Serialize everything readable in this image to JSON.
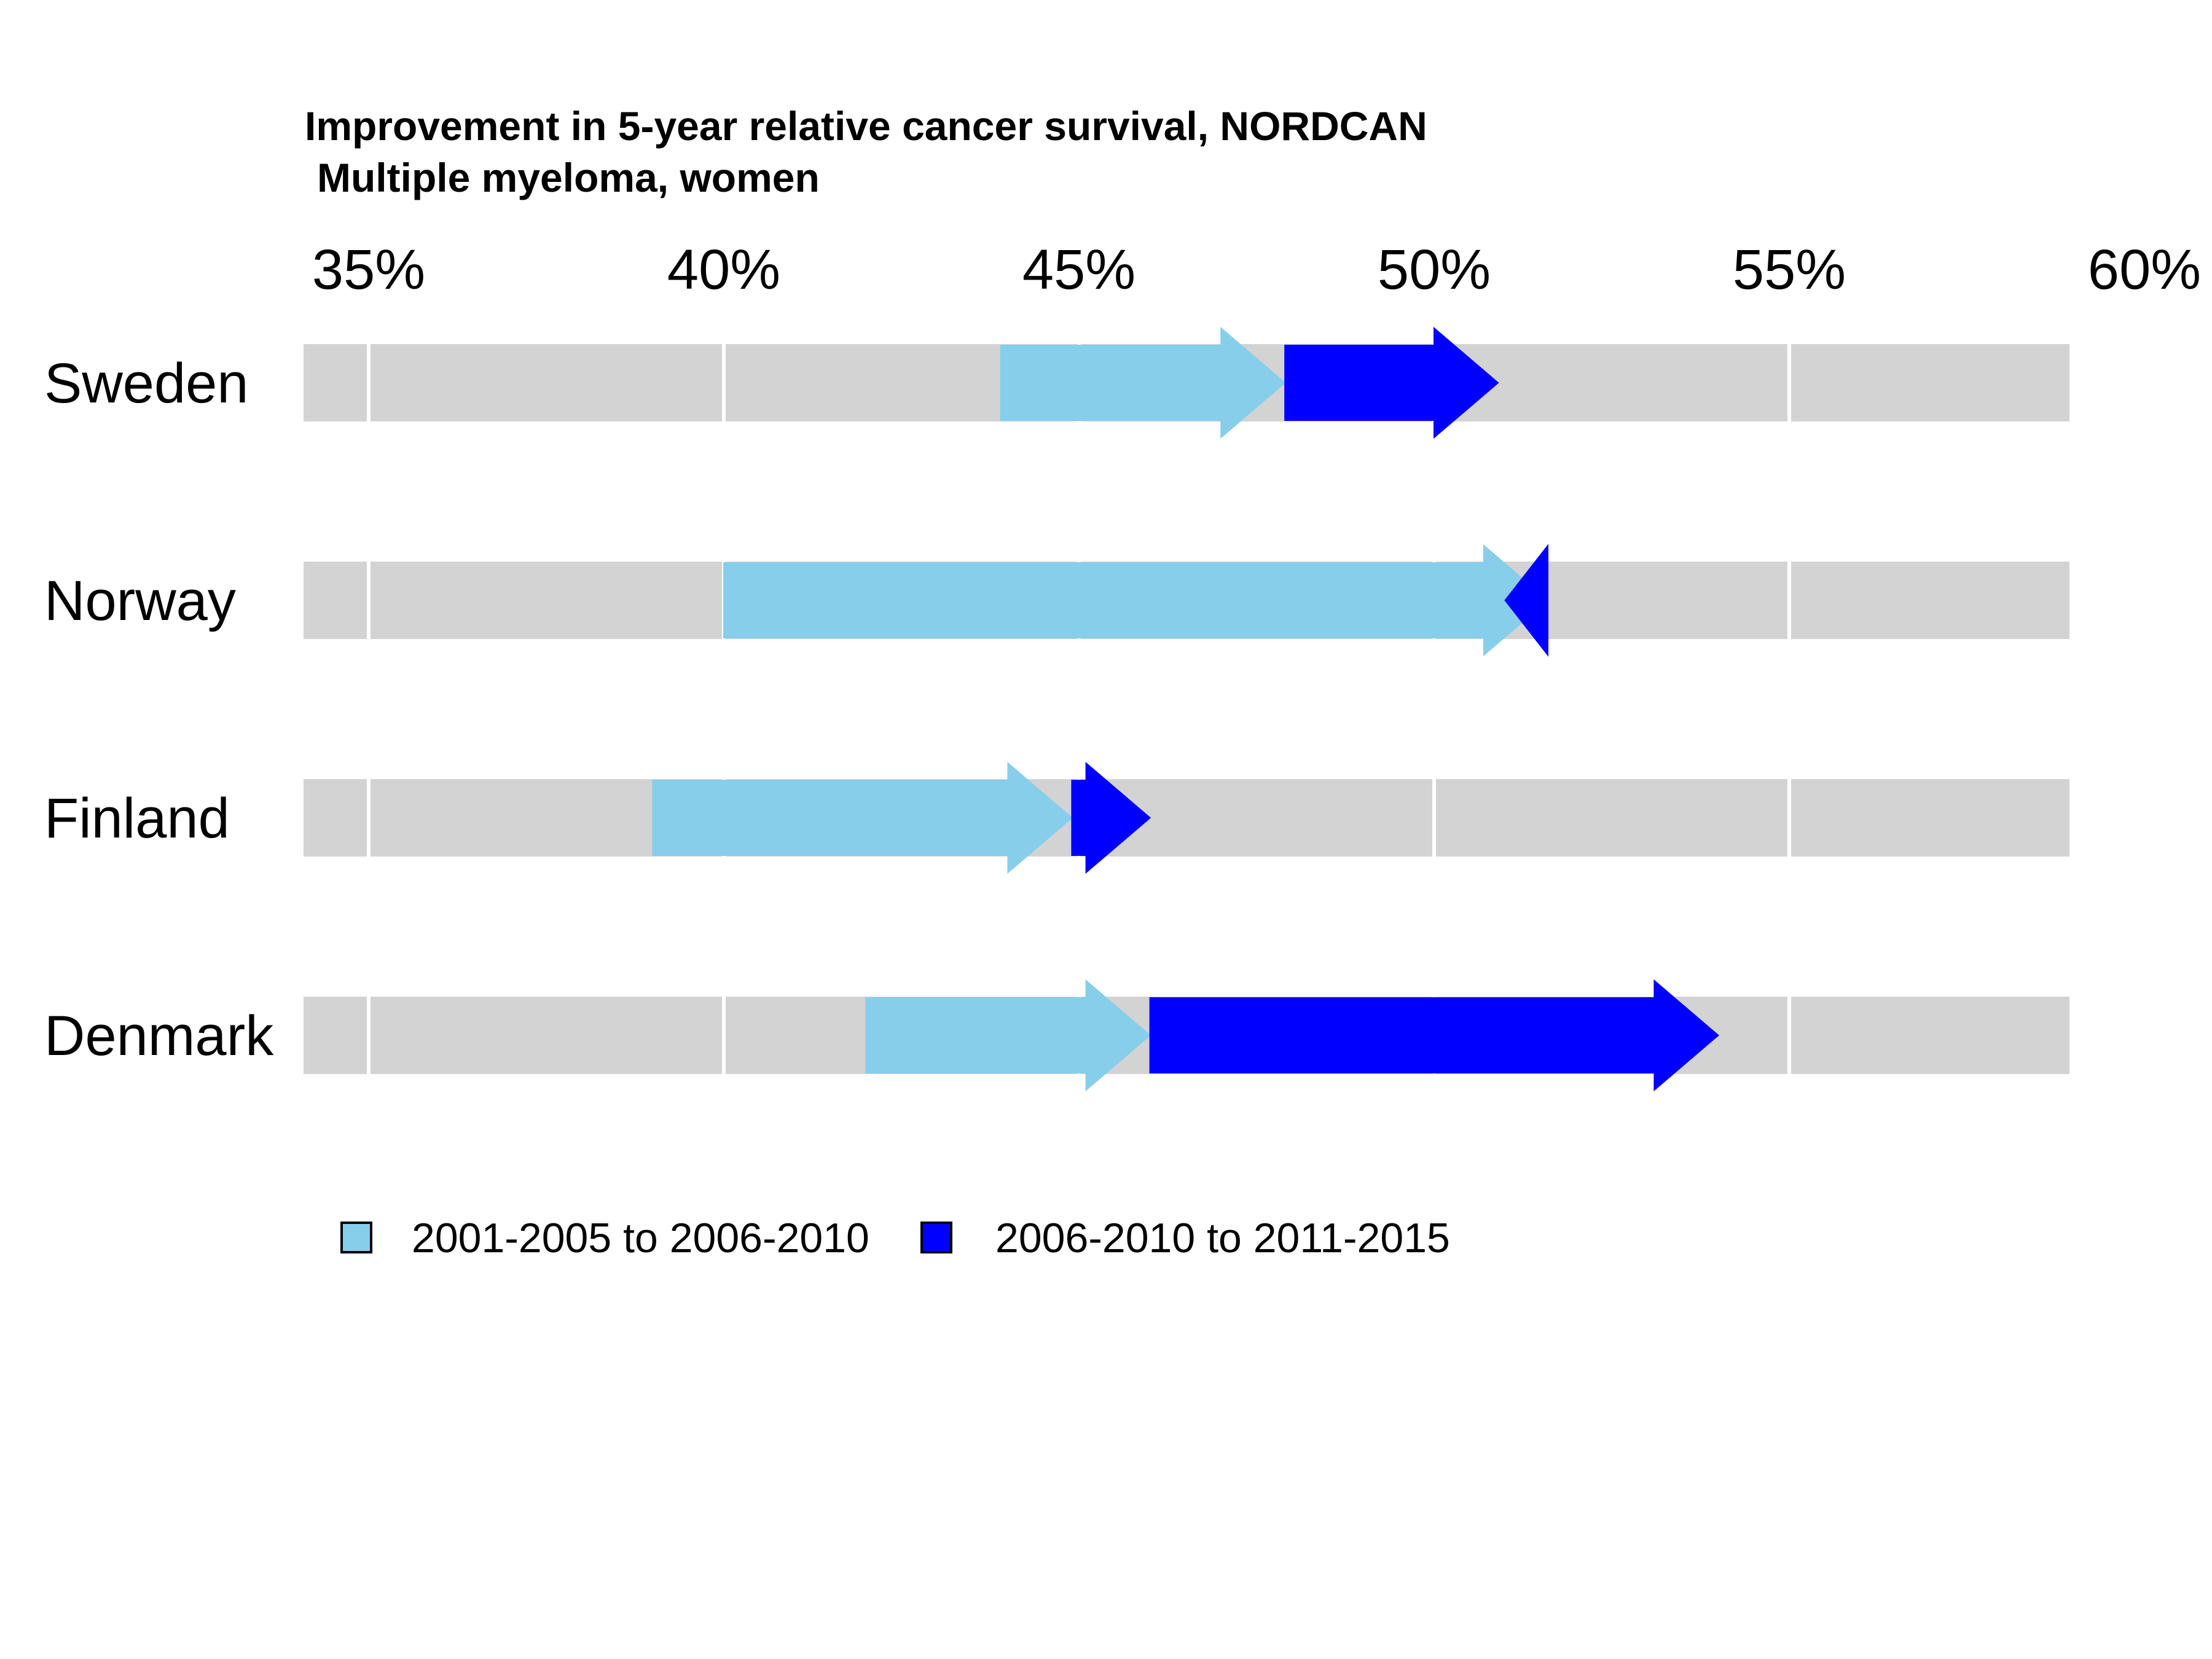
{
  "chart_data": {
    "type": "arrow",
    "title": "Improvement in 5-year relative cancer survival, NORDCAN",
    "subtitle": "Multiple myeloma, women",
    "xlim": [
      35,
      60
    ],
    "x_ticks": [
      35,
      40,
      45,
      50,
      55,
      60
    ],
    "x_tick_labels": [
      "35%",
      "40%",
      "45%",
      "50%",
      "55%",
      "60%"
    ],
    "countries": [
      "Sweden",
      "Norway",
      "Finland",
      "Denmark"
    ],
    "series": [
      {
        "name": "2001-2005 to 2006-2010",
        "color": "#87CEEB",
        "segments": [
          {
            "country": "Sweden",
            "from": 43.9,
            "to": 47.9
          },
          {
            "country": "Norway",
            "from": 40.0,
            "to": 51.6
          },
          {
            "country": "Finland",
            "from": 39.0,
            "to": 44.9
          },
          {
            "country": "Denmark",
            "from": 42.0,
            "to": 46.0
          }
        ]
      },
      {
        "name": "2006-2010 to 2011-2015",
        "color": "#0000FF",
        "segments": [
          {
            "country": "Sweden",
            "from": 47.9,
            "to": 50.9
          },
          {
            "country": "Norway",
            "from": 51.6,
            "to": 51.0
          },
          {
            "country": "Finland",
            "from": 44.9,
            "to": 46.0
          },
          {
            "country": "Denmark",
            "from": 46.0,
            "to": 54.0
          }
        ]
      }
    ],
    "legend_position": "bottom",
    "grid": true
  }
}
